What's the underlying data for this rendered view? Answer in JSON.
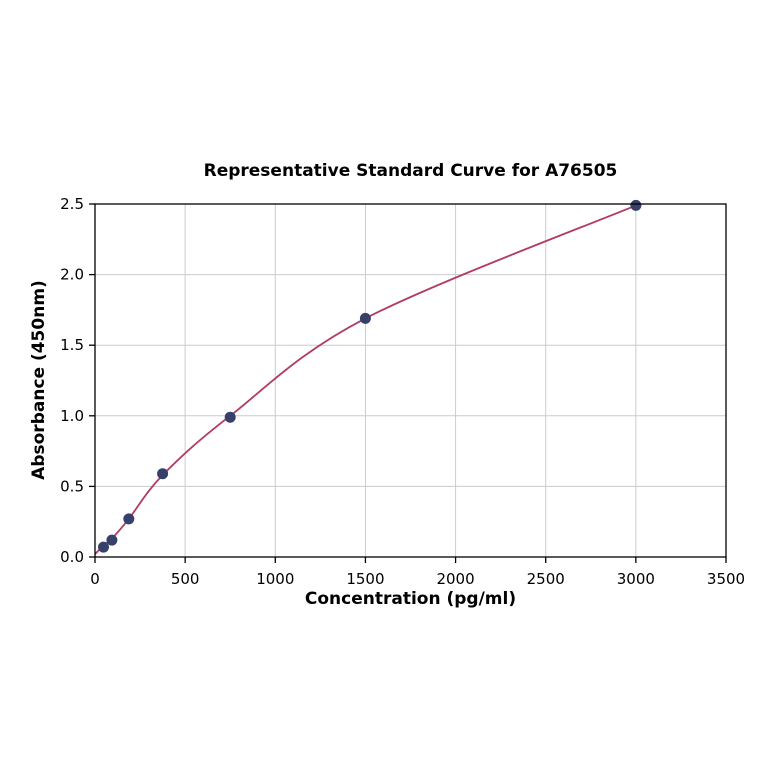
{
  "figure": {
    "background": "#ffffff"
  },
  "chart_data": {
    "type": "scatter",
    "title": "Representative Standard Curve for A76505",
    "xlabel": "Concentration (pg/ml)",
    "ylabel": "Absorbance (450nm)",
    "xlim": [
      0,
      3500
    ],
    "ylim": [
      0,
      2.5
    ],
    "x_ticks": [
      0,
      500,
      1000,
      1500,
      2000,
      2500,
      3000,
      3500
    ],
    "x_tick_labels": [
      "0",
      "500",
      "1000",
      "1500",
      "2000",
      "2500",
      "3000",
      "3500"
    ],
    "y_ticks": [
      0,
      0.5,
      1,
      1.5,
      2,
      2.5
    ],
    "y_tick_labels": [
      "0.0",
      "0.5",
      "1.0",
      "1.5",
      "2.0",
      "2.5"
    ],
    "grid": true,
    "grid_color": "#cccccc",
    "axis_color": "#000000",
    "legend_position": "none",
    "series": [
      {
        "name": "fit-curve",
        "type": "line",
        "color": "#b23a67",
        "x": [
          0,
          46.9,
          93.8,
          187.5,
          375,
          750,
          1500,
          3000
        ],
        "y": [
          0.02,
          0.08,
          0.13,
          0.27,
          0.58,
          1.0,
          1.69,
          2.49
        ]
      },
      {
        "name": "standard-points",
        "type": "scatter",
        "color": "#36406b",
        "x": [
          46.9,
          93.8,
          187.5,
          375,
          750,
          1500,
          3000
        ],
        "y": [
          0.07,
          0.12,
          0.27,
          0.59,
          0.99,
          1.69,
          2.49
        ]
      }
    ]
  }
}
